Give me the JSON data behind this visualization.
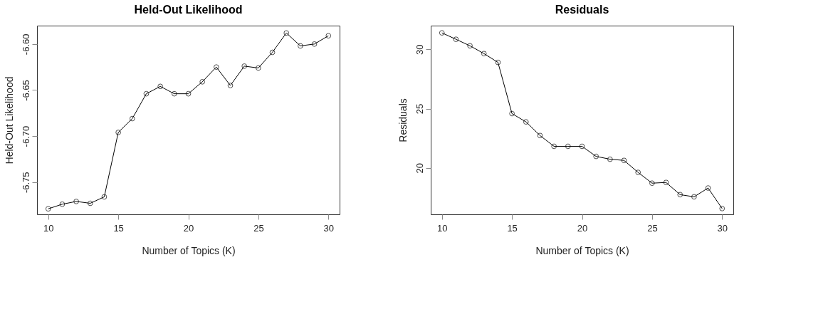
{
  "chart_data": [
    {
      "type": "line",
      "title": "Held-Out Likelihood",
      "xlabel": "Number of Topics (K)",
      "ylabel": "Held-Out Likelihood",
      "x": [
        10,
        11,
        12,
        13,
        14,
        15,
        16,
        17,
        18,
        19,
        20,
        21,
        22,
        23,
        24,
        25,
        26,
        27,
        28,
        29,
        30
      ],
      "series": [
        {
          "color": "#000000",
          "values": [
            -6.779,
            -6.774,
            -6.771,
            -6.773,
            -6.766,
            -6.696,
            -6.681,
            -6.654,
            -6.646,
            -6.654,
            -6.654,
            -6.641,
            -6.625,
            -6.645,
            -6.624,
            -6.626,
            -6.609,
            -6.588,
            -6.602,
            -6.6,
            -6.591
          ]
        }
      ],
      "xlim": [
        9.2,
        30.8
      ],
      "xticks": [
        10,
        15,
        20,
        25,
        30
      ],
      "ylim": [
        -6.785,
        -6.58
      ],
      "yticks": [
        {
          "value": -6.75,
          "label": "-6.75"
        },
        {
          "value": -6.7,
          "label": "-6.70"
        },
        {
          "value": -6.65,
          "label": "-6.65"
        },
        {
          "value": -6.6,
          "label": "-6.60"
        }
      ],
      "marker": "circle",
      "line_style": "solid"
    },
    {
      "type": "line",
      "title": "Residuals",
      "xlabel": "Number of Topics (K)",
      "ylabel": "Residuals",
      "x": [
        10,
        11,
        12,
        13,
        14,
        15,
        16,
        17,
        18,
        19,
        20,
        21,
        22,
        23,
        24,
        25,
        26,
        27,
        28,
        29,
        30
      ],
      "series": [
        {
          "color": "#000000",
          "values": [
            31.39,
            30.85,
            30.3,
            29.64,
            28.9,
            24.58,
            23.88,
            22.73,
            21.82,
            21.82,
            21.82,
            20.97,
            20.73,
            20.63,
            19.62,
            18.71,
            18.77,
            17.74,
            17.56,
            18.3,
            16.57
          ]
        }
      ],
      "xlim": [
        9.2,
        30.8
      ],
      "xticks": [
        10,
        15,
        20,
        25,
        30
      ],
      "ylim": [
        16.08,
        32.0
      ],
      "yticks": [
        20,
        25,
        30
      ],
      "marker": "circle",
      "line_style": "solid"
    }
  ]
}
